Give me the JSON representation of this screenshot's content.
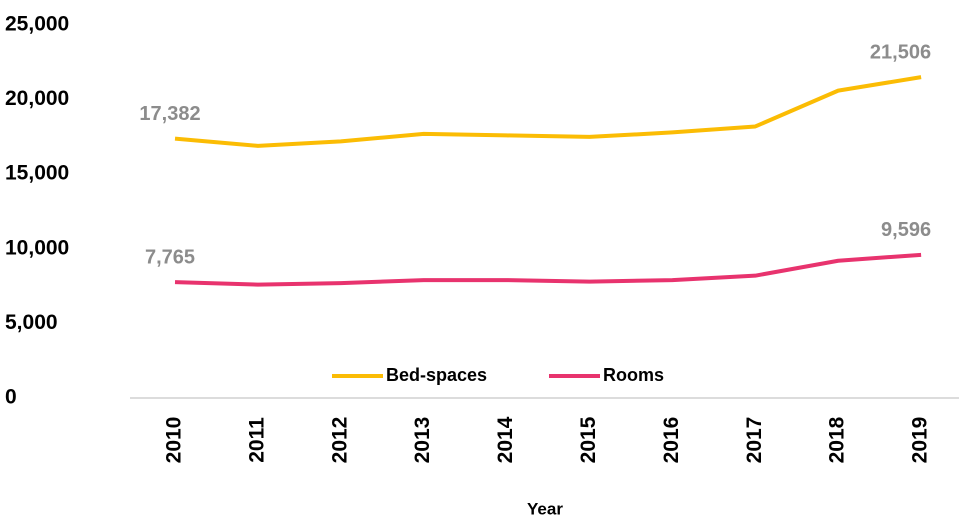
{
  "chart_data": {
    "type": "line",
    "categories": [
      "2010",
      "2011",
      "2012",
      "2013",
      "2014",
      "2015",
      "2016",
      "2017",
      "2018",
      "2019"
    ],
    "series": [
      {
        "name": "Bed-spaces",
        "color": "#fbbc04",
        "values": [
          17382,
          16900,
          17200,
          17700,
          17600,
          17500,
          17800,
          18200,
          20600,
          21506
        ],
        "value_labels": [
          "17,382",
          null,
          null,
          null,
          null,
          null,
          null,
          null,
          null,
          "21,506"
        ]
      },
      {
        "name": "Rooms",
        "color": "#e8336e",
        "values": [
          7765,
          7600,
          7700,
          7900,
          7900,
          7800,
          7900,
          8200,
          9200,
          9596
        ],
        "value_labels": [
          "7,765",
          null,
          null,
          null,
          null,
          null,
          null,
          null,
          null,
          "9,596"
        ]
      }
    ],
    "xlabel": "Year",
    "ylim": [
      0,
      25000
    ],
    "yticks": [
      0,
      {
        "value": 5000,
        "label": "5,000"
      },
      {
        "value": 10000,
        "label": "10,000"
      },
      {
        "value": 15000,
        "label": "15,000"
      },
      {
        "value": 20000,
        "label": "20,000"
      },
      {
        "value": 25000,
        "label": "25,000"
      }
    ],
    "grid": false,
    "legend": "bottom"
  }
}
